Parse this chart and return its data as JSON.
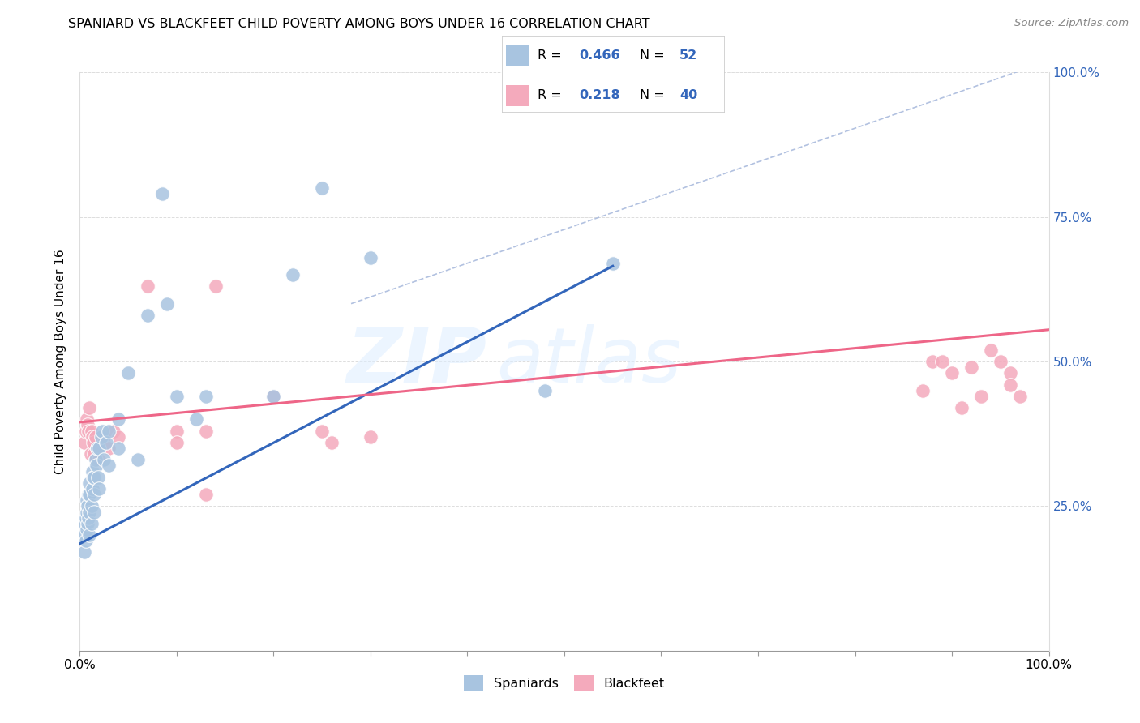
{
  "title": "SPANIARD VS BLACKFEET CHILD POVERTY AMONG BOYS UNDER 16 CORRELATION CHART",
  "source": "Source: ZipAtlas.com",
  "ylabel": "Child Poverty Among Boys Under 16",
  "xlim": [
    0.0,
    1.0
  ],
  "ylim": [
    0.0,
    1.0
  ],
  "color_blue": "#A8C4E0",
  "color_pink": "#F4AABC",
  "color_blue_line": "#3366BB",
  "color_pink_line": "#EE6688",
  "color_diag": "#AABBDD",
  "watermark_zip": "ZIP",
  "watermark_atlas": "atlas",
  "spaniards_x": [
    0.005,
    0.005,
    0.005,
    0.006,
    0.006,
    0.007,
    0.007,
    0.007,
    0.008,
    0.008,
    0.009,
    0.009,
    0.01,
    0.01,
    0.01,
    0.01,
    0.012,
    0.012,
    0.013,
    0.013,
    0.014,
    0.015,
    0.015,
    0.015,
    0.016,
    0.017,
    0.018,
    0.019,
    0.02,
    0.02,
    0.022,
    0.023,
    0.025,
    0.027,
    0.03,
    0.03,
    0.04,
    0.04,
    0.05,
    0.06,
    0.07,
    0.085,
    0.09,
    0.1,
    0.12,
    0.13,
    0.2,
    0.22,
    0.25,
    0.3,
    0.48,
    0.55
  ],
  "spaniards_y": [
    0.17,
    0.2,
    0.22,
    0.19,
    0.23,
    0.21,
    0.24,
    0.26,
    0.22,
    0.25,
    0.23,
    0.27,
    0.2,
    0.24,
    0.27,
    0.29,
    0.22,
    0.25,
    0.28,
    0.31,
    0.3,
    0.24,
    0.27,
    0.3,
    0.33,
    0.32,
    0.35,
    0.3,
    0.28,
    0.35,
    0.37,
    0.38,
    0.33,
    0.36,
    0.32,
    0.38,
    0.35,
    0.4,
    0.48,
    0.33,
    0.58,
    0.79,
    0.6,
    0.44,
    0.4,
    0.44,
    0.44,
    0.65,
    0.8,
    0.68,
    0.45,
    0.67
  ],
  "blackfeet_x": [
    0.005,
    0.006,
    0.007,
    0.008,
    0.009,
    0.01,
    0.011,
    0.012,
    0.013,
    0.014,
    0.015,
    0.016,
    0.018,
    0.02,
    0.025,
    0.03,
    0.035,
    0.04,
    0.07,
    0.1,
    0.1,
    0.13,
    0.13,
    0.14,
    0.2,
    0.25,
    0.26,
    0.3,
    0.87,
    0.88,
    0.89,
    0.9,
    0.91,
    0.92,
    0.93,
    0.94,
    0.95,
    0.96,
    0.96,
    0.97
  ],
  "blackfeet_y": [
    0.36,
    0.38,
    0.4,
    0.39,
    0.38,
    0.42,
    0.34,
    0.38,
    0.37,
    0.36,
    0.34,
    0.37,
    0.35,
    0.33,
    0.36,
    0.35,
    0.38,
    0.37,
    0.63,
    0.38,
    0.36,
    0.27,
    0.38,
    0.63,
    0.44,
    0.38,
    0.36,
    0.37,
    0.45,
    0.5,
    0.5,
    0.48,
    0.42,
    0.49,
    0.44,
    0.52,
    0.5,
    0.48,
    0.46,
    0.44
  ],
  "blue_line_x": [
    0.0,
    0.55
  ],
  "blue_line_y": [
    0.185,
    0.665
  ],
  "pink_line_x": [
    0.0,
    1.0
  ],
  "pink_line_y": [
    0.395,
    0.555
  ],
  "diag_line_x": [
    0.28,
    1.0
  ],
  "diag_line_y": [
    0.6,
    1.02
  ]
}
